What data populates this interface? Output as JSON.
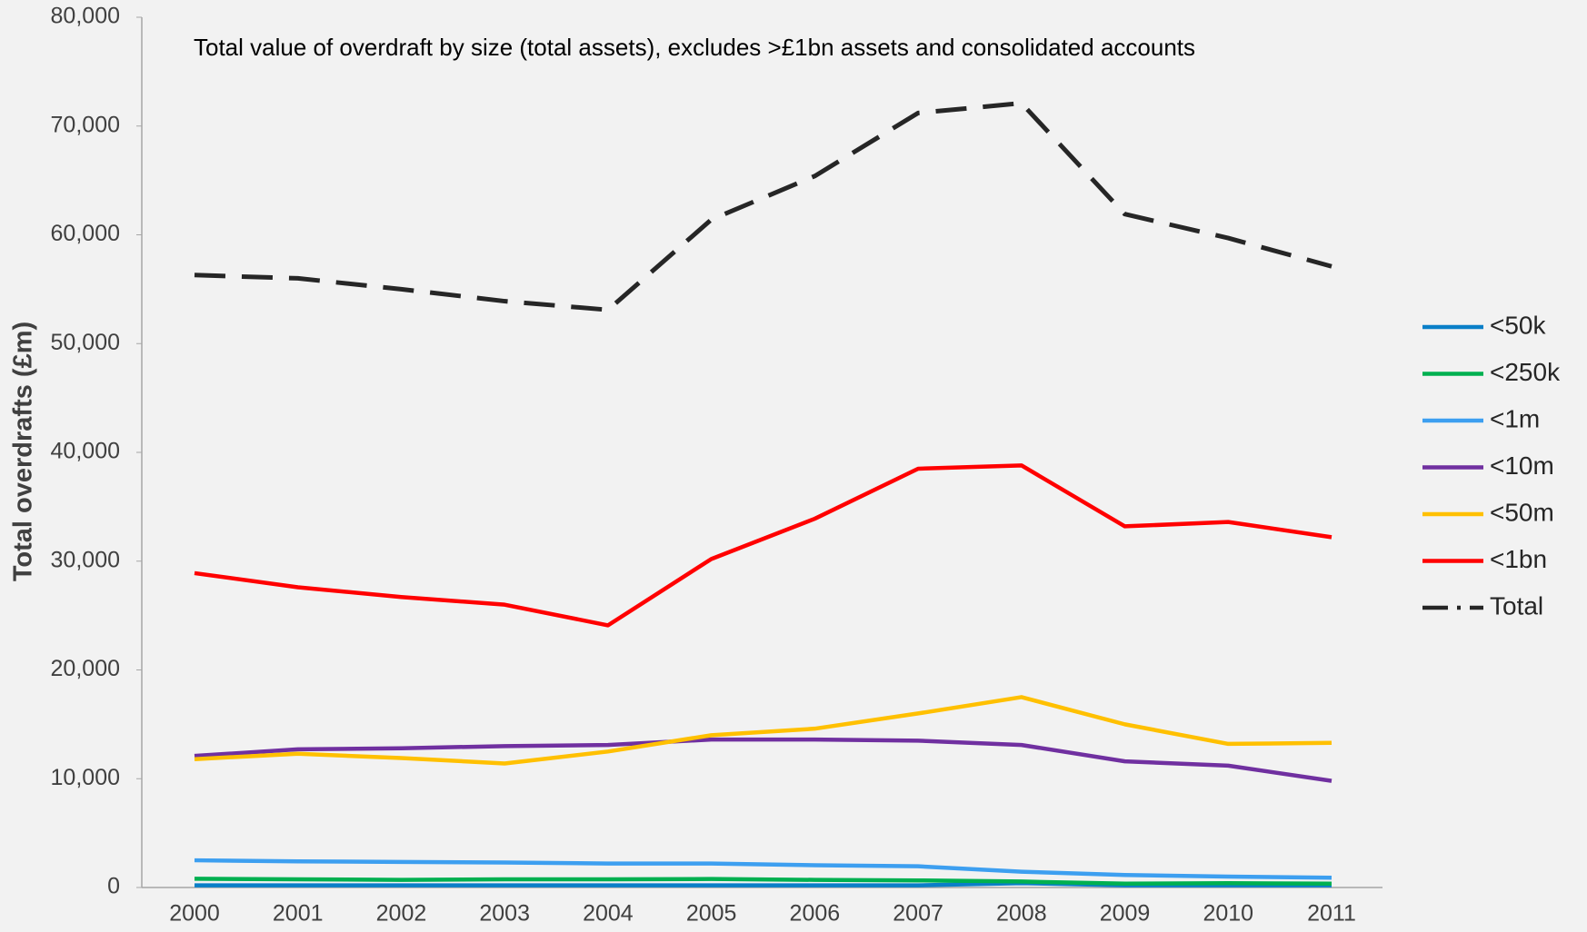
{
  "chart_data": {
    "type": "line",
    "title": "Total value of overdraft by size (total assets), excludes >£1bn assets and consolidated accounts",
    "y_label": "Total overdrafts (£m)",
    "categories": [
      "2000",
      "2001",
      "2002",
      "2003",
      "2004",
      "2005",
      "2006",
      "2007",
      "2008",
      "2009",
      "2010",
      "2011"
    ],
    "series": [
      {
        "name": "<50k",
        "color": "#0a7fc8",
        "values": [
          200,
          200,
          200,
          200,
          200,
          200,
          200,
          200,
          400,
          200,
          200,
          200
        ]
      },
      {
        "name": "<250k",
        "color": "#00b050",
        "values": [
          800,
          750,
          700,
          750,
          750,
          780,
          700,
          650,
          550,
          350,
          400,
          350
        ]
      },
      {
        "name": "<1m",
        "color": "#3d9ff0",
        "values": [
          2500,
          2400,
          2350,
          2300,
          2200,
          2200,
          2050,
          1950,
          1450,
          1150,
          1000,
          900
        ]
      },
      {
        "name": "<10m",
        "color": "#7030a0",
        "values": [
          12100,
          12700,
          12800,
          13000,
          13100,
          13600,
          13600,
          13500,
          13100,
          11600,
          11200,
          9800
        ]
      },
      {
        "name": "<50m",
        "color": "#ffc000",
        "values": [
          11800,
          12300,
          11900,
          11400,
          12500,
          14000,
          14600,
          16000,
          17500,
          15000,
          13200,
          13300
        ]
      },
      {
        "name": "<1bn",
        "color": "#ff0000",
        "values": [
          28900,
          27600,
          26700,
          26000,
          24100,
          30200,
          33900,
          38500,
          38800,
          33200,
          33600,
          32200
        ]
      },
      {
        "name": "Total",
        "color": "#262626",
        "dashed": true,
        "values": [
          56300,
          56000,
          55000,
          53900,
          53100,
          61400,
          65400,
          71200,
          72100,
          61900,
          59700,
          57100
        ]
      }
    ],
    "ylim": [
      0,
      80000
    ],
    "yticks": [
      0,
      {
        "value": 10000,
        "label": "10,000"
      },
      {
        "value": 20000,
        "label": "20,000"
      },
      {
        "value": 30000,
        "label": "30,000"
      },
      {
        "value": 40000,
        "label": "40,000"
      },
      {
        "value": 50000,
        "label": "50,000"
      },
      {
        "value": 60000,
        "label": "60,000"
      },
      {
        "value": 70000,
        "label": "70,000"
      },
      {
        "value": 80000,
        "label": "80,000"
      }
    ],
    "grid": false,
    "legend": "right"
  }
}
